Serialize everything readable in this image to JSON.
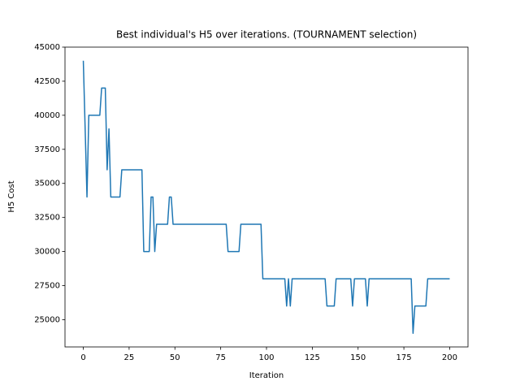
{
  "chart_data": {
    "type": "line",
    "title": "Best individual's H5 over iterations. (TOURNAMENT selection)",
    "x_label": "Iteration",
    "y_label": "H5 Cost",
    "x": [
      0,
      2,
      3,
      9,
      10,
      12,
      13,
      14,
      15,
      20,
      21,
      32,
      33,
      36,
      37,
      38,
      39,
      40,
      46,
      47,
      48,
      49,
      78,
      79,
      85,
      86,
      97,
      98,
      110,
      111,
      112,
      113,
      114,
      132,
      133,
      137,
      138,
      146,
      147,
      148,
      154,
      155,
      156,
      179,
      180,
      181,
      187,
      188,
      200
    ],
    "series": [
      {
        "color": "#1f77b4",
        "values": [
          44000,
          34000,
          40000,
          40000,
          42000,
          42000,
          36000,
          39000,
          34000,
          34000,
          36000,
          36000,
          30000,
          30000,
          34000,
          34000,
          30000,
          32000,
          32000,
          34000,
          34000,
          32000,
          32000,
          30000,
          30000,
          32000,
          32000,
          28000,
          28000,
          26000,
          28000,
          26000,
          28000,
          28000,
          26000,
          26000,
          28000,
          28000,
          26000,
          28000,
          28000,
          26000,
          28000,
          28000,
          24000,
          26000,
          26000,
          28000,
          28000
        ]
      }
    ],
    "xlim": [
      -10,
      210
    ],
    "xticks": [
      0,
      25,
      50,
      75,
      100,
      125,
      150,
      175,
      200
    ],
    "ylim": [
      23000,
      45000
    ],
    "yticks": [
      25000,
      27500,
      30000,
      32500,
      35000,
      37500,
      40000,
      42500,
      45000
    ],
    "grid": false
  }
}
